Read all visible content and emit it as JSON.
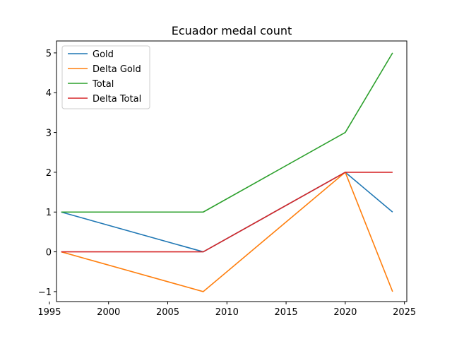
{
  "chart_data": {
    "type": "line",
    "title": "Ecuador medal count",
    "xlabel": "",
    "ylabel": "",
    "x": [
      1996,
      2008,
      2020,
      2024
    ],
    "xlim": [
      1995.6,
      2025.2
    ],
    "ylim": [
      -1.25,
      5.3
    ],
    "xticks": [
      1995,
      2000,
      2005,
      2010,
      2015,
      2020,
      2025
    ],
    "yticks": [
      -1,
      0,
      1,
      2,
      3,
      4,
      5
    ],
    "ytick_labels": [
      "−1",
      "0",
      "1",
      "2",
      "3",
      "4",
      "5"
    ],
    "grid": false,
    "legend_position": "top-left",
    "series": [
      {
        "name": "Gold",
        "color": "#1f77b4",
        "values": [
          1,
          0,
          2,
          1
        ]
      },
      {
        "name": "Delta Gold",
        "color": "#ff7f0e",
        "values": [
          0,
          -1,
          2,
          -1
        ]
      },
      {
        "name": "Total",
        "color": "#2ca02c",
        "values": [
          1,
          1,
          3,
          5
        ]
      },
      {
        "name": "Delta Total",
        "color": "#d62728",
        "values": [
          0,
          0,
          2,
          2
        ]
      }
    ]
  }
}
